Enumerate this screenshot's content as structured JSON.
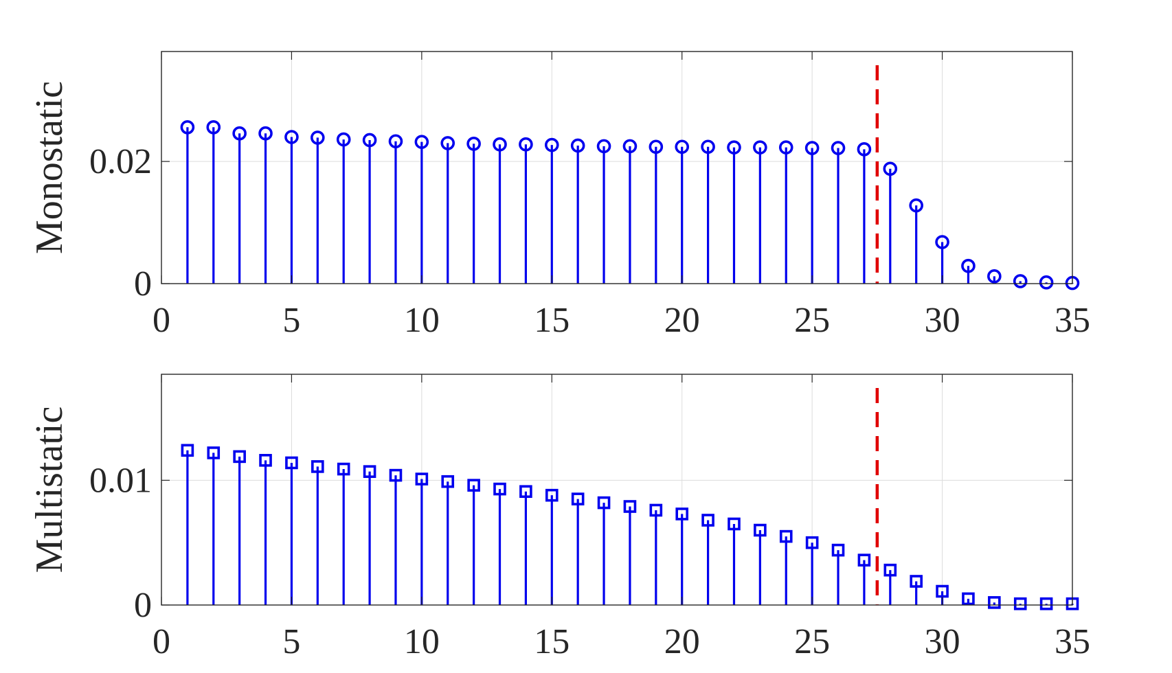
{
  "chart_data": [
    {
      "type": "stem",
      "ylabel": "Monostatic",
      "xlabel": "",
      "xlim": [
        0,
        35
      ],
      "ylim": [
        0,
        0.038
      ],
      "xticks": [
        "0",
        "5",
        "10",
        "15",
        "20",
        "25",
        "30",
        "35"
      ],
      "yticks": [
        "0",
        "0.02"
      ],
      "grid": true,
      "marker": "circle",
      "series_color": "#0000ee",
      "threshold_color": "#e00000",
      "threshold_x": 27.5,
      "x": [
        1,
        2,
        3,
        4,
        5,
        6,
        7,
        8,
        9,
        10,
        11,
        12,
        13,
        14,
        15,
        16,
        17,
        18,
        19,
        20,
        21,
        22,
        23,
        24,
        25,
        26,
        27,
        28,
        29,
        30,
        31,
        32,
        33,
        34,
        35
      ],
      "values": [
        0.0256,
        0.0256,
        0.0246,
        0.0246,
        0.024,
        0.0239,
        0.0236,
        0.0235,
        0.0233,
        0.0232,
        0.023,
        0.0229,
        0.0228,
        0.0228,
        0.0227,
        0.0226,
        0.0225,
        0.0225,
        0.0224,
        0.0224,
        0.0224,
        0.0223,
        0.0223,
        0.0223,
        0.0222,
        0.0222,
        0.022,
        0.0188,
        0.0128,
        0.0068,
        0.0029,
        0.0012,
        0.0004,
        0.0002,
        0.0001
      ]
    },
    {
      "type": "stem",
      "ylabel": "Multistatic",
      "xlabel": "",
      "xlim": [
        0,
        35
      ],
      "ylim": [
        0,
        0.0185
      ],
      "xticks": [
        "0",
        "5",
        "10",
        "15",
        "20",
        "25",
        "30",
        "35"
      ],
      "yticks": [
        "0",
        "0.01"
      ],
      "grid": true,
      "marker": "square",
      "series_color": "#0000ee",
      "threshold_color": "#e00000",
      "threshold_x": 27.5,
      "x": [
        1,
        2,
        3,
        4,
        5,
        6,
        7,
        8,
        9,
        10,
        11,
        12,
        13,
        14,
        15,
        16,
        17,
        18,
        19,
        20,
        21,
        22,
        23,
        24,
        25,
        26,
        27,
        28,
        29,
        30,
        31,
        32,
        33,
        34,
        35
      ],
      "values": [
        0.0124,
        0.0122,
        0.0119,
        0.0116,
        0.0114,
        0.0111,
        0.0109,
        0.0107,
        0.0104,
        0.0101,
        0.0099,
        0.0096,
        0.0093,
        0.0091,
        0.0088,
        0.0085,
        0.0082,
        0.0079,
        0.0076,
        0.0073,
        0.0068,
        0.0065,
        0.006,
        0.0055,
        0.005,
        0.0044,
        0.0036,
        0.0028,
        0.0019,
        0.0011,
        0.0005,
        0.0002,
        0.0001,
        0.0001,
        0.0001
      ]
    }
  ]
}
